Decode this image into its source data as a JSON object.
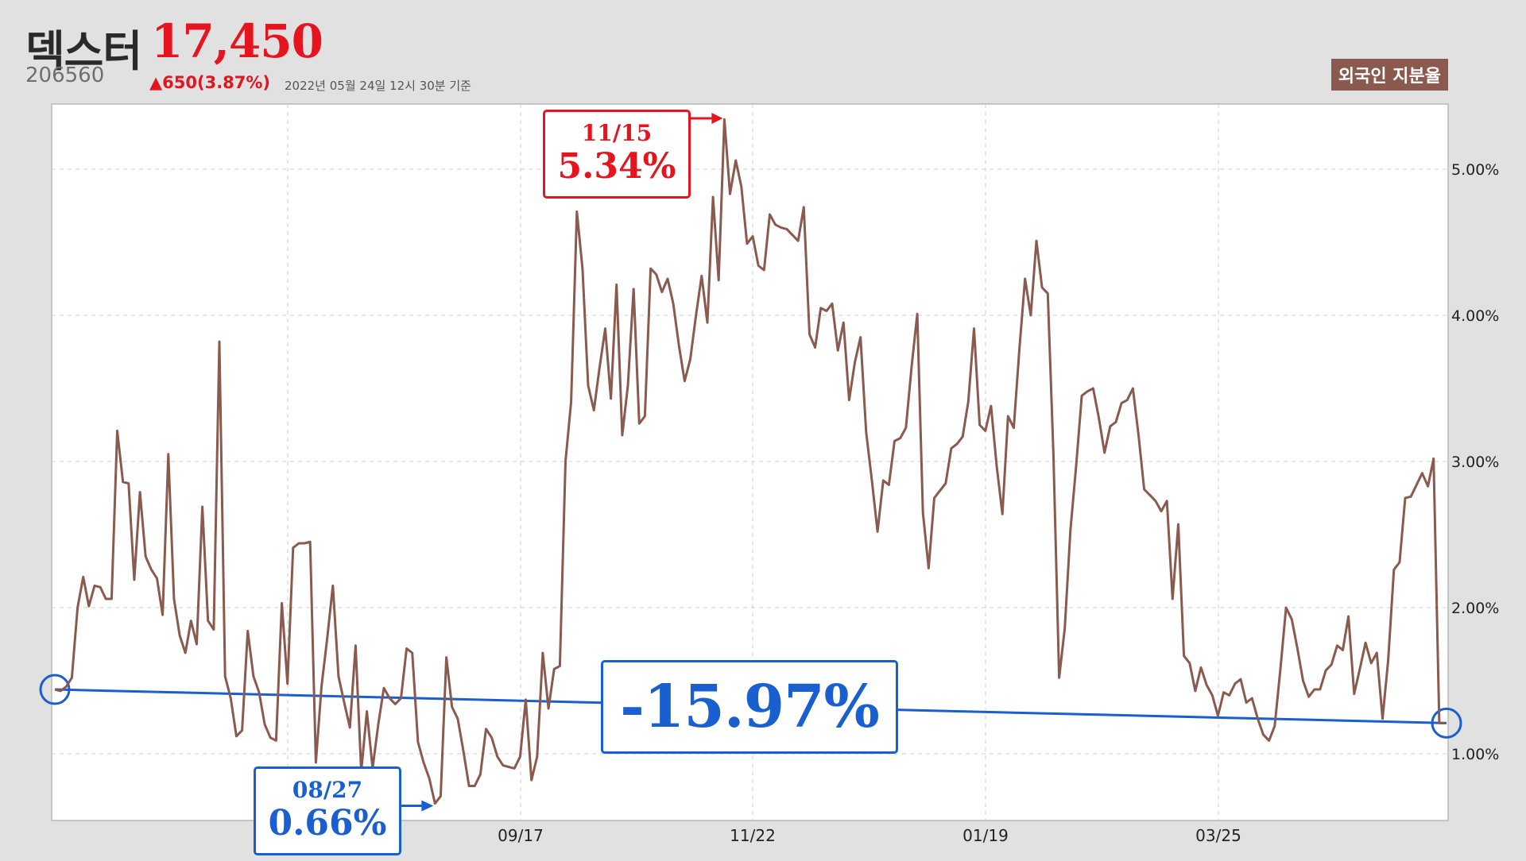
{
  "header": {
    "name": "덱스터",
    "price": "17,450",
    "code": "206560",
    "change": "▲650(3.87%)",
    "as_of": "2022년 05월 24일 12시 30분 기준",
    "badge": "외국인 지분율"
  },
  "colors": {
    "line": "#8a5a4f",
    "up": "#e6141e",
    "trend": "#1a5fcf",
    "grid": "#cfcfcf"
  },
  "chart_data": {
    "type": "line",
    "series": [
      {
        "values": [
          1.44,
          1.43,
          1.46,
          1.52,
          2.0,
          2.21,
          2.01,
          2.15,
          2.14,
          2.06,
          2.06,
          3.21,
          2.86,
          2.85,
          2.19,
          2.79,
          2.35,
          2.26,
          2.2,
          1.95,
          3.05,
          2.06,
          1.81,
          1.69,
          1.91,
          1.75,
          2.69,
          1.91,
          1.85,
          3.82,
          1.53,
          1.38,
          1.12,
          1.16,
          1.84,
          1.53,
          1.42,
          1.2,
          1.11,
          1.09,
          2.03,
          1.48,
          2.41,
          2.44,
          2.44,
          2.45,
          0.94,
          1.46,
          1.79,
          2.15,
          1.53,
          1.35,
          1.18,
          1.74,
          0.88,
          1.29,
          0.9,
          1.2,
          1.45,
          1.38,
          1.34,
          1.38,
          1.72,
          1.69,
          1.08,
          0.94,
          0.83,
          0.66,
          0.71,
          1.66,
          1.32,
          1.24,
          1.02,
          0.78,
          0.78,
          0.86,
          1.17,
          1.11,
          0.98,
          0.92,
          0.91,
          0.9,
          0.98,
          1.37,
          0.82,
          0.98,
          1.69,
          1.31,
          1.58,
          1.6,
          3.0,
          3.41,
          4.71,
          4.32,
          3.52,
          3.35,
          3.64,
          3.91,
          3.43,
          4.21,
          3.18,
          3.52,
          4.18,
          3.26,
          3.31,
          4.32,
          4.28,
          4.16,
          4.25,
          4.08,
          3.79,
          3.55,
          3.7,
          4.0,
          4.27,
          3.95,
          4.81,
          4.24,
          5.34,
          4.83,
          5.06,
          4.88,
          4.49,
          4.54,
          4.34,
          4.31,
          4.69,
          4.62,
          4.6,
          4.59,
          4.55,
          4.51,
          4.74,
          3.87,
          3.78,
          4.05,
          4.03,
          4.08,
          3.76,
          3.95,
          3.42,
          3.68,
          3.85,
          3.2,
          2.87,
          2.52,
          2.87,
          2.84,
          3.14,
          3.16,
          3.23,
          3.65,
          4.01,
          2.65,
          2.27,
          2.75,
          2.8,
          2.85,
          3.09,
          3.12,
          3.17,
          3.41,
          3.91,
          3.25,
          3.21,
          3.38,
          2.97,
          2.64,
          3.31,
          3.23,
          3.77,
          4.25,
          4.0,
          4.51,
          4.19,
          4.15,
          3.05,
          1.52,
          1.86,
          2.53,
          2.97,
          3.45,
          3.48,
          3.5,
          3.3,
          3.06,
          3.24,
          3.27,
          3.4,
          3.42,
          3.5,
          3.18,
          2.81,
          2.77,
          2.73,
          2.66,
          2.73,
          2.06,
          2.57,
          1.67,
          1.62,
          1.43,
          1.59,
          1.47,
          1.4,
          1.26,
          1.42,
          1.4,
          1.48,
          1.51,
          1.35,
          1.38,
          1.24,
          1.13,
          1.09,
          1.19,
          1.58,
          2.0,
          1.92,
          1.72,
          1.5,
          1.39,
          1.44,
          1.44,
          1.57,
          1.61,
          1.74,
          1.71,
          1.94,
          1.41,
          1.58,
          1.76,
          1.62,
          1.69,
          1.24,
          1.64,
          2.26,
          2.31,
          2.75,
          2.76,
          2.84,
          2.92,
          2.83,
          3.02,
          1.21,
          1.21
        ]
      }
    ],
    "x_ticks": [
      "09/17",
      "11/22",
      "01/19",
      "03/25"
    ],
    "y_ticks": [
      "1.00%",
      "2.00%",
      "3.00%",
      "4.00%",
      "5.00%"
    ],
    "ylim": [
      0.55,
      5.45
    ],
    "grid": true,
    "annotations": {
      "high": {
        "date": "11/15",
        "value": "5.34%",
        "index": 118
      },
      "low": {
        "date": "08/27",
        "value": "0.66%",
        "index": 67
      },
      "change": "-15.97%",
      "trend": {
        "start": 1.44,
        "end": 1.21
      }
    }
  }
}
